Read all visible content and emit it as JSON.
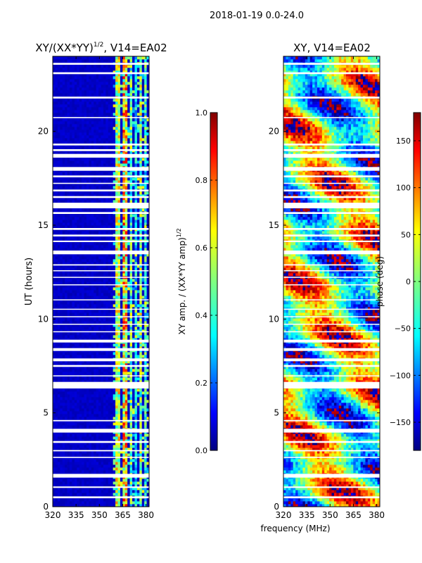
{
  "suptitle": "2018-01-19 0.0-24.0",
  "shared_xlabel": "frequency (MHz)",
  "colors": {
    "jet": [
      "#000080",
      "#0000ff",
      "#0080ff",
      "#00ffff",
      "#80ff80",
      "#ffff00",
      "#ff8000",
      "#ff0000",
      "#800000"
    ],
    "gap": "#ffffff"
  },
  "chart_data": [
    {
      "type": "heatmap",
      "panel": "left",
      "title_main": "XY/(XX*YY)",
      "title_exp": "1/2",
      "title_rest": ", V14=EA02",
      "xlabel": "",
      "ylabel": "UT (hours)",
      "xlim": [
        320,
        382
      ],
      "ylim": [
        0,
        24
      ],
      "xticks": [
        320,
        335,
        350,
        365,
        380
      ],
      "yticks": [
        0,
        5,
        10,
        15,
        20
      ],
      "colorbar": {
        "label": "XY amp. / (XX*YY amp)",
        "label_exp": "1/2",
        "range": [
          0.0,
          1.0
        ],
        "ticks": [
          "0.0",
          "0.2",
          "0.4",
          "0.6",
          "0.8",
          "1.0"
        ]
      }
    },
    {
      "type": "heatmap",
      "panel": "right",
      "title_main": "XY, V14=EA02",
      "xlabel": "frequency (MHz)",
      "ylabel": "",
      "xlim": [
        320,
        382
      ],
      "ylim": [
        0,
        24
      ],
      "xticks": [
        320,
        335,
        350,
        365,
        380
      ],
      "yticks": [
        0,
        5,
        10,
        15,
        20
      ],
      "colorbar": {
        "label": "phase (deg)",
        "range": [
          -180,
          180
        ],
        "ticks": [
          "150",
          "100",
          "50",
          "0",
          "−50",
          "−100",
          "−150"
        ]
      }
    }
  ],
  "flag_gaps_hours": [
    [
      0.45,
      0.55
    ],
    [
      1.0,
      1.08
    ],
    [
      1.55,
      1.75
    ],
    [
      2.6,
      2.66
    ],
    [
      2.95,
      3.02
    ],
    [
      3.4,
      3.5
    ],
    [
      3.95,
      4.15
    ],
    [
      4.55,
      4.62
    ],
    [
      6.3,
      6.65
    ],
    [
      6.95,
      7.0
    ],
    [
      7.45,
      7.55
    ],
    [
      7.75,
      7.9
    ],
    [
      8.3,
      8.45
    ],
    [
      8.75,
      8.9
    ],
    [
      9.3,
      9.35
    ],
    [
      9.7,
      9.75
    ],
    [
      10.1,
      10.15
    ],
    [
      10.5,
      10.55
    ],
    [
      11.0,
      11.05
    ],
    [
      11.8,
      11.85
    ],
    [
      12.2,
      12.25
    ],
    [
      12.55,
      12.6
    ],
    [
      12.85,
      12.92
    ],
    [
      13.45,
      13.65
    ],
    [
      14.1,
      14.18
    ],
    [
      14.4,
      14.5
    ],
    [
      14.75,
      14.85
    ],
    [
      15.6,
      15.7
    ],
    [
      15.9,
      16.2
    ],
    [
      16.45,
      16.55
    ],
    [
      16.8,
      16.9
    ],
    [
      17.2,
      17.26
    ],
    [
      17.55,
      17.65
    ],
    [
      17.9,
      18.1
    ],
    [
      18.6,
      18.8
    ],
    [
      18.95,
      19.05
    ],
    [
      19.25,
      19.35
    ],
    [
      20.7,
      20.76
    ],
    [
      21.75,
      21.85
    ],
    [
      23.05,
      23.15
    ],
    [
      23.55,
      23.65
    ]
  ],
  "left_rfi_bands_mhz": [
    [
      361.0,
      364.0,
      0.55
    ],
    [
      365.0,
      367.5,
      0.65
    ],
    [
      369.0,
      371.5,
      0.45
    ],
    [
      372.5,
      374.0,
      0.35
    ],
    [
      375.5,
      377.5,
      0.5
    ],
    [
      379.0,
      381.0,
      0.4
    ]
  ],
  "left_baseline_value": 0.07,
  "phase_seed": 20180119
}
